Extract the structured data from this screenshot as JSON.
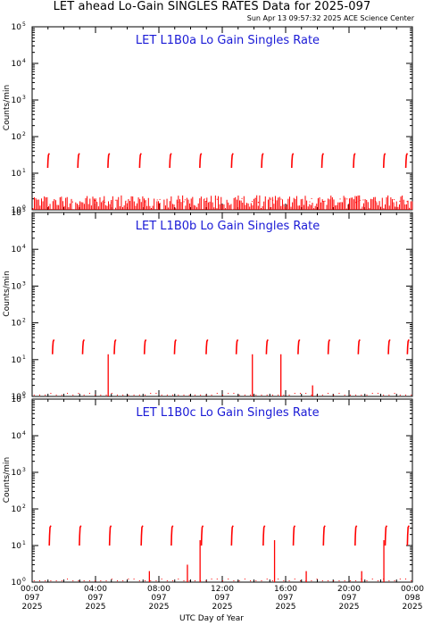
{
  "header": {
    "title": "LET ahead Lo-Gain SINGLES RATES Data for 2025-097",
    "timestamp": "Sun Apr 13 09:57:32 2025 ACE Science Center"
  },
  "colors": {
    "data": "#ff0000",
    "panel_title": "#1a1ad6",
    "axes": "#000000"
  },
  "chart_data": [
    {
      "type": "scatter",
      "title": "LET L1B0a Lo Gain Singles Rate",
      "ylabel": "Counts/min",
      "yscale": "log",
      "ylim": [
        1,
        100000
      ],
      "yticks": [
        "10^0",
        "10^1",
        "10^2",
        "10^3",
        "10^4",
        "10^5"
      ],
      "xlim": [
        0,
        24
      ],
      "bursts": [
        {
          "x": 1.0,
          "y": [
            14,
            35
          ]
        },
        {
          "x": 2.9,
          "y": [
            14,
            35
          ]
        },
        {
          "x": 4.8,
          "y": [
            14,
            35
          ]
        },
        {
          "x": 6.8,
          "y": [
            14,
            35
          ]
        },
        {
          "x": 8.7,
          "y": [
            14,
            35
          ]
        },
        {
          "x": 10.6,
          "y": [
            14,
            35
          ]
        },
        {
          "x": 12.6,
          "y": [
            14,
            35
          ]
        },
        {
          "x": 14.5,
          "y": [
            14,
            35
          ]
        },
        {
          "x": 16.4,
          "y": [
            14,
            35
          ]
        },
        {
          "x": 18.3,
          "y": [
            14,
            35
          ]
        },
        {
          "x": 20.3,
          "y": [
            14,
            35
          ]
        },
        {
          "x": 22.2,
          "y": [
            14,
            35
          ]
        },
        {
          "x": 23.6,
          "y": [
            14,
            35
          ]
        }
      ],
      "baseline": [
        1,
        2.5
      ]
    },
    {
      "type": "scatter",
      "title": "LET L1B0b Lo Gain Singles Rate",
      "ylabel": "Counts/min",
      "yscale": "log",
      "ylim": [
        1,
        100000
      ],
      "yticks": [
        "10^0",
        "10^1",
        "10^2",
        "10^3",
        "10^4",
        "10^5"
      ],
      "xlim": [
        0,
        24
      ],
      "bursts": [
        {
          "x": 1.3,
          "y": [
            14,
            35
          ]
        },
        {
          "x": 3.2,
          "y": [
            14,
            35
          ]
        },
        {
          "x": 5.2,
          "y": [
            14,
            35
          ]
        },
        {
          "x": 7.1,
          "y": [
            14,
            35
          ]
        },
        {
          "x": 9.0,
          "y": [
            14,
            35
          ]
        },
        {
          "x": 11.0,
          "y": [
            14,
            35
          ]
        },
        {
          "x": 12.9,
          "y": [
            14,
            35
          ]
        },
        {
          "x": 14.8,
          "y": [
            14,
            35
          ]
        },
        {
          "x": 16.8,
          "y": [
            14,
            35
          ]
        },
        {
          "x": 18.7,
          "y": [
            14,
            35
          ]
        },
        {
          "x": 20.6,
          "y": [
            14,
            35
          ]
        },
        {
          "x": 22.5,
          "y": [
            14,
            35
          ]
        },
        {
          "x": 23.7,
          "y": [
            14,
            35
          ]
        }
      ],
      "spikes": [
        {
          "x": 4.8,
          "y": 14
        },
        {
          "x": 13.9,
          "y": 14
        },
        {
          "x": 15.7,
          "y": 14
        },
        {
          "x": 17.7,
          "y": 2
        }
      ]
    },
    {
      "type": "scatter",
      "title": "LET L1B0c Lo Gain Singles Rate",
      "ylabel": "Counts/min",
      "yscale": "log",
      "ylim": [
        1,
        100000
      ],
      "yticks": [
        "10^0",
        "10^1",
        "10^2",
        "10^3",
        "10^4",
        "10^5"
      ],
      "xlim": [
        0,
        24
      ],
      "bursts": [
        {
          "x": 1.1,
          "y": [
            10,
            35
          ]
        },
        {
          "x": 3.0,
          "y": [
            10,
            35
          ]
        },
        {
          "x": 4.9,
          "y": [
            10,
            35
          ]
        },
        {
          "x": 6.9,
          "y": [
            10,
            35
          ]
        },
        {
          "x": 8.8,
          "y": [
            10,
            35
          ]
        },
        {
          "x": 10.7,
          "y": [
            10,
            35
          ]
        },
        {
          "x": 12.6,
          "y": [
            10,
            35
          ]
        },
        {
          "x": 14.6,
          "y": [
            10,
            35
          ]
        },
        {
          "x": 16.5,
          "y": [
            10,
            35
          ]
        },
        {
          "x": 18.4,
          "y": [
            10,
            35
          ]
        },
        {
          "x": 20.4,
          "y": [
            10,
            35
          ]
        },
        {
          "x": 22.3,
          "y": [
            10,
            35
          ]
        },
        {
          "x": 23.7,
          "y": [
            10,
            35
          ]
        }
      ],
      "spikes": [
        {
          "x": 9.8,
          "y": 3
        },
        {
          "x": 10.6,
          "y": 14
        },
        {
          "x": 15.3,
          "y": 14
        },
        {
          "x": 22.2,
          "y": 14
        },
        {
          "x": 7.4,
          "y": 2
        },
        {
          "x": 17.3,
          "y": 2
        },
        {
          "x": 20.8,
          "y": 2
        }
      ]
    }
  ],
  "x_axis": {
    "label": "UTC Day of Year",
    "ticks": [
      {
        "time": "00:00",
        "day": "097",
        "year": "2025"
      },
      {
        "time": "04:00",
        "day": "097",
        "year": "2025"
      },
      {
        "time": "08:00",
        "day": "097",
        "year": "2025"
      },
      {
        "time": "12:00",
        "day": "097",
        "year": "2025"
      },
      {
        "time": "16:00",
        "day": "097",
        "year": "2025"
      },
      {
        "time": "20:00",
        "day": "097",
        "year": "2025"
      },
      {
        "time": "00:00",
        "day": "098",
        "year": "2025"
      }
    ]
  }
}
